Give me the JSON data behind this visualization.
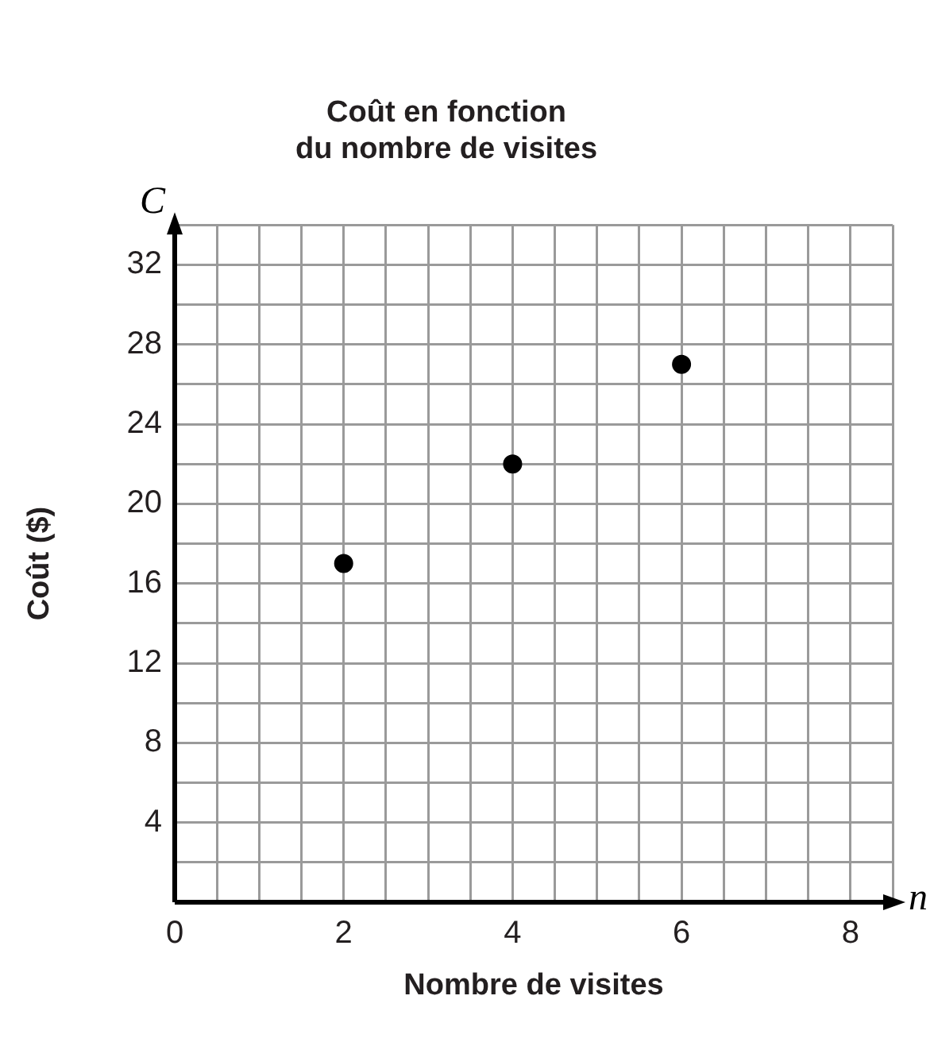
{
  "chart_data": {
    "type": "scatter",
    "title": "Coût en fonction\ndu nombre de visites",
    "xlabel": "Nombre de visites",
    "ylabel": "Coût ($)",
    "annotations": [
      "C",
      "n"
    ],
    "x": [
      2,
      4,
      6
    ],
    "series": [
      {
        "color": "#000000",
        "values": [
          17,
          22,
          27
        ]
      }
    ],
    "xlim": [
      0,
      8.5
    ],
    "xticks": [
      0,
      {
        "value": 0.5,
        "label": null
      },
      {
        "value": 1,
        "label": null
      },
      {
        "value": 1.5,
        "label": null
      },
      2,
      {
        "value": 2.5,
        "label": null
      },
      {
        "value": 3,
        "label": null
      },
      {
        "value": 3.5,
        "label": null
      },
      4,
      {
        "value": 4.5,
        "label": null
      },
      {
        "value": 5,
        "label": null
      },
      {
        "value": 5.5,
        "label": null
      },
      6,
      {
        "value": 6.5,
        "label": null
      },
      {
        "value": 7,
        "label": null
      },
      {
        "value": 7.5,
        "label": null
      },
      8,
      {
        "value": 8.5,
        "label": null
      }
    ],
    "ylim": [
      0,
      34
    ],
    "yticks": [
      {
        "value": 0,
        "label": null
      },
      {
        "value": 2,
        "label": null
      },
      4,
      {
        "value": 6,
        "label": null
      },
      8,
      {
        "value": 10,
        "label": null
      },
      12,
      {
        "value": 14,
        "label": null
      },
      16,
      {
        "value": 18,
        "label": null
      },
      20,
      {
        "value": 22,
        "label": null
      },
      24,
      {
        "value": 26,
        "label": null
      },
      28,
      {
        "value": 30,
        "label": null
      },
      32,
      {
        "value": 34,
        "label": null
      }
    ],
    "grid": true,
    "legend": false,
    "marker": "circle"
  }
}
